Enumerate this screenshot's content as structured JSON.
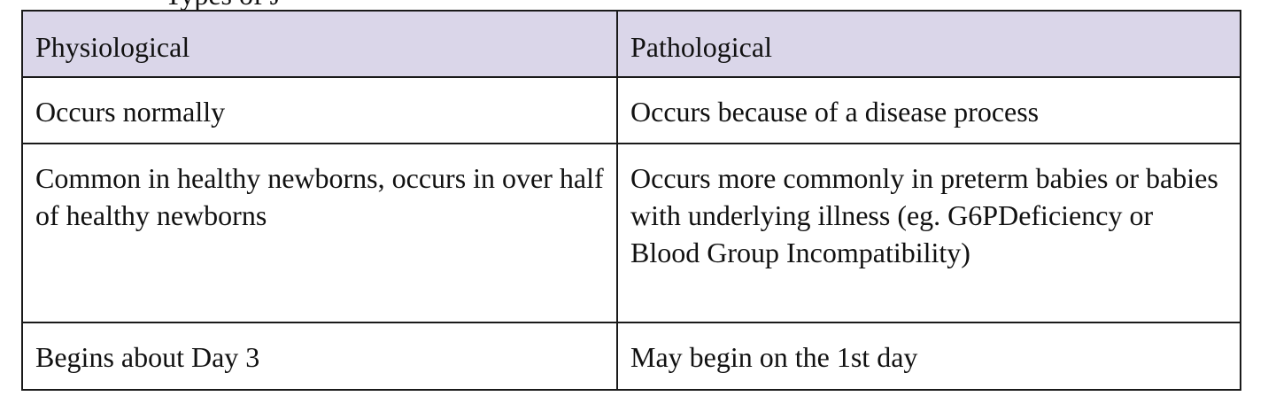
{
  "cutoff_heading": "Types of J",
  "table": {
    "headers": [
      "Physiological",
      "Pathological"
    ],
    "rows": [
      [
        "Occurs normally",
        "Occurs because of a disease process"
      ],
      [
        "Common in healthy newborns, occurs in over half of healthy newborns",
        "Occurs more commonly in preterm babies or babies with underlying illness (eg. G6PDeficiency or Blood Group Incompatibility)"
      ],
      [
        "Begins about Day 3",
        "May begin on the 1st day"
      ]
    ]
  },
  "colors": {
    "header_background": "#dad6e9",
    "border": "#1a1a1a",
    "text": "#111111"
  }
}
